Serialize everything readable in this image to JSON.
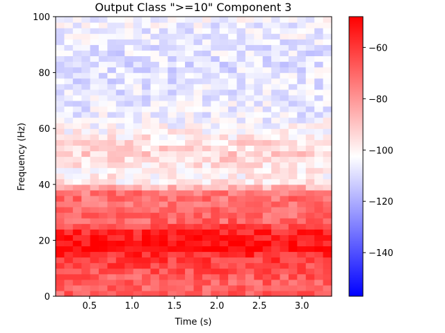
{
  "chart_data": {
    "type": "heatmap",
    "title": "Output Class \">=10\" Component 3",
    "xlabel": "Time (s)",
    "ylabel": "Frequency (Hz)",
    "xlim": [
      0.1,
      3.35
    ],
    "ylim": [
      0,
      100
    ],
    "x_ticks": [
      0.5,
      1.0,
      1.5,
      2.0,
      2.5,
      3.0
    ],
    "x_tick_labels": [
      "0.5",
      "1.0",
      "1.5",
      "2.0",
      "2.5",
      "3.0"
    ],
    "y_ticks": [
      0,
      20,
      40,
      60,
      80,
      100
    ],
    "y_tick_labels": [
      "0",
      "20",
      "40",
      "60",
      "80",
      "100"
    ],
    "colormap": "bwr",
    "color_range": [
      -157,
      -48
    ],
    "colorbar_ticks": [
      -60,
      -80,
      -100,
      -120,
      -140
    ],
    "colorbar_tick_labels": [
      "−60",
      "−80",
      "−100",
      "−120",
      "−140"
    ],
    "n_time_bins": 32,
    "n_freq_bins": 50,
    "freq_profile_db": {
      "frequencies_hz": [
        0,
        2,
        4,
        6,
        8,
        10,
        12,
        14,
        16,
        18,
        20,
        22,
        24,
        26,
        28,
        30,
        32,
        34,
        36,
        38,
        40,
        45,
        50,
        55,
        60,
        65,
        70,
        75,
        80,
        85,
        90,
        95,
        100
      ],
      "power_db": [
        -68,
        -68,
        -70,
        -68,
        -66,
        -64,
        -62,
        -60,
        -55,
        -52,
        -52,
        -55,
        -58,
        -68,
        -70,
        -70,
        -72,
        -72,
        -72,
        -74,
        -98,
        -100,
        -92,
        -95,
        -102,
        -106,
        -107,
        -108,
        -108,
        -109,
        -107,
        -106,
        -105
      ]
    }
  },
  "colors": {
    "low": "#0000ff",
    "mid": "#ffffff",
    "high": "#ff0000"
  }
}
